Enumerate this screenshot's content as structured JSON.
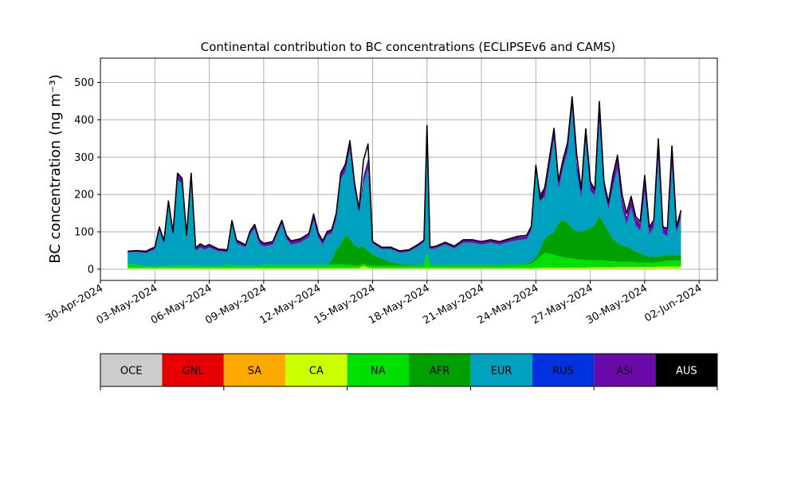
{
  "chart_data": {
    "type": "area",
    "stacked": true,
    "title": "Continental contribution to BC concentrations (ECLIPSEv6 and CAMS)",
    "ylabel": "BC concentration (ng m⁻³)",
    "xlabel": "",
    "x_range": [
      "2024-04-30",
      "2024-06-03"
    ],
    "x_ticks": [
      "30-Apr-2024",
      "03-May-2024",
      "06-May-2024",
      "09-May-2024",
      "12-May-2024",
      "15-May-2024",
      "18-May-2024",
      "21-May-2024",
      "24-May-2024",
      "27-May-2024",
      "30-May-2024",
      "02-Jun-2024"
    ],
    "x_tick_dates": [
      "2024-04-30",
      "2024-05-03",
      "2024-05-06",
      "2024-05-09",
      "2024-05-12",
      "2024-05-15",
      "2024-05-18",
      "2024-05-21",
      "2024-05-24",
      "2024-05-27",
      "2024-05-30",
      "2024-06-02"
    ],
    "ylim": [
      -30,
      565
    ],
    "y_ticks": [
      0,
      100,
      200,
      300,
      400,
      500
    ],
    "grid": true,
    "x": [
      "2024-05-01 12:00",
      "2024-05-02 00:00",
      "2024-05-02 12:00",
      "2024-05-02 18:00",
      "2024-05-03 00:00",
      "2024-05-03 06:00",
      "2024-05-03 12:00",
      "2024-05-03 18:00",
      "2024-05-04 00:00",
      "2024-05-04 06:00",
      "2024-05-04 12:00",
      "2024-05-04 18:00",
      "2024-05-05 00:00",
      "2024-05-05 06:00",
      "2024-05-05 12:00",
      "2024-05-05 18:00",
      "2024-05-06 00:00",
      "2024-05-06 12:00",
      "2024-05-07 00:00",
      "2024-05-07 06:00",
      "2024-05-07 12:00",
      "2024-05-08 00:00",
      "2024-05-08 06:00",
      "2024-05-08 12:00",
      "2024-05-08 18:00",
      "2024-05-09 00:00",
      "2024-05-09 12:00",
      "2024-05-10 00:00",
      "2024-05-10 06:00",
      "2024-05-10 12:00",
      "2024-05-11 00:00",
      "2024-05-11 12:00",
      "2024-05-11 18:00",
      "2024-05-12 00:00",
      "2024-05-12 06:00",
      "2024-05-12 12:00",
      "2024-05-12 18:00",
      "2024-05-13 00:00",
      "2024-05-13 06:00",
      "2024-05-13 12:00",
      "2024-05-13 18:00",
      "2024-05-14 00:00",
      "2024-05-14 06:00",
      "2024-05-14 12:00",
      "2024-05-14 18:00",
      "2024-05-15 00:00",
      "2024-05-15 12:00",
      "2024-05-16 00:00",
      "2024-05-16 12:00",
      "2024-05-17 00:00",
      "2024-05-17 12:00",
      "2024-05-17 20:00",
      "2024-05-18 00:00",
      "2024-05-18 04:00",
      "2024-05-18 12:00",
      "2024-05-19 00:00",
      "2024-05-19 12:00",
      "2024-05-20 00:00",
      "2024-05-20 12:00",
      "2024-05-21 00:00",
      "2024-05-21 12:00",
      "2024-05-22 00:00",
      "2024-05-22 12:00",
      "2024-05-23 00:00",
      "2024-05-23 12:00",
      "2024-05-23 18:00",
      "2024-05-24 00:00",
      "2024-05-24 06:00",
      "2024-05-24 12:00",
      "2024-05-25 00:00",
      "2024-05-25 06:00",
      "2024-05-25 12:00",
      "2024-05-25 18:00",
      "2024-05-26 00:00",
      "2024-05-26 06:00",
      "2024-05-26 12:00",
      "2024-05-26 18:00",
      "2024-05-27 00:00",
      "2024-05-27 06:00",
      "2024-05-27 12:00",
      "2024-05-27 18:00",
      "2024-05-28 00:00",
      "2024-05-28 06:00",
      "2024-05-28 12:00",
      "2024-05-28 18:00",
      "2024-05-29 00:00",
      "2024-05-29 06:00",
      "2024-05-29 12:00",
      "2024-05-29 18:00",
      "2024-05-30 00:00",
      "2024-05-30 06:00",
      "2024-05-30 12:00",
      "2024-05-30 18:00",
      "2024-05-31 00:00",
      "2024-05-31 06:00",
      "2024-05-31 12:00",
      "2024-05-31 18:00",
      "2024-06-01 00:00"
    ],
    "series": [
      {
        "name": "OCE",
        "color": "#cccccc",
        "values": [
          1,
          1,
          1,
          1,
          1,
          1,
          1,
          1,
          1,
          1,
          1,
          1,
          1,
          1,
          1,
          1,
          1,
          1,
          1,
          1,
          1,
          1,
          1,
          1,
          1,
          1,
          1,
          1,
          1,
          1,
          1,
          1,
          1,
          1,
          1,
          1,
          1,
          1,
          1,
          1,
          1,
          1,
          1,
          1,
          1,
          1,
          1,
          1,
          1,
          1,
          1,
          1,
          1,
          1,
          1,
          1,
          1,
          1,
          1,
          1,
          1,
          1,
          1,
          1,
          1,
          1,
          1,
          1,
          1,
          1,
          1,
          1,
          1,
          1,
          1,
          1,
          1,
          1,
          1,
          1,
          1,
          1,
          1,
          1,
          1,
          1,
          1,
          1,
          1,
          1,
          1,
          1,
          1,
          1,
          1,
          1,
          1,
          1
        ]
      },
      {
        "name": "GNL",
        "color": "#e60000",
        "values": [
          0,
          0,
          0,
          0,
          0,
          0,
          0,
          0,
          0,
          0,
          0,
          0,
          0,
          0,
          0,
          0,
          0,
          0,
          0,
          0,
          0,
          0,
          0,
          0,
          0,
          0,
          0,
          0,
          0,
          0,
          0,
          0,
          0,
          0,
          0,
          0,
          0,
          0,
          0,
          0,
          0,
          0,
          0,
          0,
          0,
          0,
          0,
          0,
          0,
          0,
          0,
          0,
          0,
          0,
          0,
          0,
          0,
          0,
          0,
          0,
          0,
          0,
          0,
          0,
          0,
          0,
          0,
          0,
          0,
          0,
          0,
          0,
          0,
          0,
          0,
          0,
          0,
          0,
          0,
          0,
          0,
          0,
          0,
          0,
          0,
          0,
          0,
          0,
          0,
          0,
          0,
          0,
          0,
          0,
          0,
          0,
          0,
          0
        ]
      },
      {
        "name": "SA",
        "color": "#ffaa00",
        "values": [
          0,
          0,
          0,
          0,
          0,
          0,
          0,
          0,
          0,
          0,
          0,
          0,
          0,
          0,
          0,
          0,
          0,
          0,
          0,
          0,
          0,
          0,
          0,
          0,
          0,
          0,
          0,
          0,
          0,
          0,
          0,
          0,
          0,
          0,
          0,
          0,
          0,
          0,
          0,
          0,
          0,
          0,
          0,
          0,
          0,
          0,
          0,
          0,
          0,
          0,
          0,
          0,
          0,
          0,
          0,
          0,
          0,
          0,
          0,
          0,
          0,
          0,
          0,
          0,
          0,
          0,
          0,
          0,
          0,
          0,
          0,
          0,
          0,
          0,
          0,
          0,
          0,
          0,
          0,
          0,
          0,
          0,
          0,
          0,
          0,
          0,
          0,
          0,
          0,
          0,
          0,
          0,
          0,
          0,
          0,
          0,
          0,
          0
        ]
      },
      {
        "name": "CA",
        "color": "#ccff00",
        "values": [
          2,
          2,
          2,
          2,
          2,
          2,
          2,
          2,
          2,
          2,
          2,
          2,
          2,
          2,
          2,
          2,
          2,
          2,
          2,
          2,
          2,
          2,
          2,
          2,
          2,
          2,
          2,
          2,
          2,
          2,
          2,
          2,
          2,
          2,
          2,
          2,
          2,
          2,
          2,
          2,
          2,
          2,
          2,
          8,
          3,
          2,
          2,
          2,
          2,
          2,
          2,
          2,
          2,
          2,
          2,
          2,
          2,
          2,
          2,
          2,
          2,
          2,
          2,
          2,
          2,
          2,
          2,
          3,
          3,
          3,
          3,
          3,
          3,
          3,
          3,
          3,
          3,
          4,
          4,
          4,
          4,
          4,
          4,
          5,
          5,
          5,
          5,
          5,
          5,
          5,
          5,
          5,
          6,
          6,
          6,
          6,
          6,
          6
        ]
      },
      {
        "name": "NA",
        "color": "#00e000",
        "values": [
          12,
          8,
          5,
          5,
          5,
          5,
          5,
          5,
          6,
          6,
          6,
          8,
          6,
          6,
          5,
          5,
          5,
          5,
          8,
          8,
          6,
          6,
          6,
          6,
          6,
          8,
          8,
          8,
          8,
          8,
          8,
          8,
          8,
          8,
          8,
          8,
          8,
          10,
          10,
          8,
          8,
          6,
          6,
          6,
          6,
          6,
          6,
          6,
          6,
          6,
          6,
          8,
          40,
          8,
          6,
          6,
          6,
          6,
          6,
          6,
          6,
          6,
          8,
          8,
          10,
          12,
          20,
          30,
          40,
          35,
          30,
          28,
          25,
          25,
          22,
          22,
          20,
          20,
          18,
          18,
          18,
          16,
          16,
          14,
          14,
          14,
          14,
          12,
          12,
          12,
          12,
          12,
          12,
          14,
          16,
          16,
          16,
          16
        ]
      },
      {
        "name": "AFR",
        "color": "#00a000",
        "values": [
          0,
          0,
          0,
          0,
          0,
          0,
          0,
          0,
          0,
          0,
          0,
          0,
          0,
          0,
          0,
          0,
          0,
          0,
          0,
          0,
          0,
          0,
          0,
          0,
          0,
          0,
          0,
          0,
          0,
          0,
          0,
          0,
          0,
          0,
          0,
          0,
          15,
          40,
          55,
          80,
          70,
          55,
          50,
          45,
          40,
          30,
          20,
          10,
          5,
          3,
          2,
          2,
          2,
          2,
          2,
          2,
          2,
          2,
          2,
          2,
          2,
          2,
          2,
          2,
          3,
          5,
          10,
          20,
          40,
          60,
          90,
          100,
          95,
          80,
          75,
          75,
          80,
          85,
          95,
          120,
          100,
          80,
          60,
          50,
          45,
          40,
          35,
          30,
          25,
          20,
          15,
          15,
          15,
          15,
          15,
          15,
          15,
          15
        ]
      },
      {
        "name": "EUR",
        "color": "#00a0bf",
        "values": [
          30,
          35,
          35,
          40,
          45,
          95,
          60,
          160,
          80,
          230,
          220,
          70,
          230,
          40,
          50,
          45,
          50,
          40,
          35,
          110,
          60,
          50,
          85,
          100,
          60,
          50,
          55,
          110,
          70,
          55,
          60,
          75,
          120,
          75,
          55,
          80,
          70,
          80,
          175,
          170,
          240,
          150,
          90,
          170,
          220,
          30,
          25,
          35,
          30,
          35,
          50,
          60,
          330,
          40,
          45,
          55,
          45,
          60,
          60,
          55,
          60,
          55,
          60,
          65,
          65,
          85,
          230,
          130,
          110,
          250,
          90,
          140,
          190,
          320,
          160,
          90,
          240,
          100,
          80,
          250,
          95,
          60,
          140,
          200,
          100,
          60,
          110,
          70,
          60,
          170,
          60,
          80,
          260,
          60,
          50,
          240,
          60,
          100
        ]
      },
      {
        "name": "RUS",
        "color": "#0033e0",
        "values": [
          0,
          0,
          0,
          0,
          0,
          0,
          0,
          0,
          0,
          0,
          0,
          0,
          0,
          0,
          0,
          0,
          0,
          0,
          0,
          0,
          0,
          0,
          0,
          0,
          0,
          0,
          0,
          0,
          0,
          0,
          0,
          0,
          0,
          0,
          0,
          0,
          0,
          0,
          0,
          0,
          0,
          0,
          0,
          0,
          0,
          0,
          0,
          0,
          0,
          0,
          0,
          0,
          0,
          0,
          0,
          0,
          0,
          0,
          0,
          0,
          0,
          0,
          0,
          0,
          0,
          0,
          0,
          0,
          0,
          0,
          0,
          0,
          0,
          0,
          0,
          0,
          0,
          0,
          0,
          0,
          0,
          0,
          0,
          0,
          0,
          0,
          0,
          0,
          0,
          0,
          0,
          0,
          0,
          0,
          0,
          0,
          0,
          0
        ]
      },
      {
        "name": "ASI",
        "color": "#6a0aab",
        "values": [
          3,
          4,
          5,
          6,
          6,
          10,
          8,
          15,
          10,
          18,
          15,
          10,
          18,
          8,
          10,
          8,
          8,
          6,
          6,
          8,
          8,
          6,
          8,
          10,
          10,
          8,
          8,
          10,
          10,
          10,
          10,
          10,
          15,
          12,
          10,
          10,
          10,
          12,
          15,
          20,
          25,
          20,
          12,
          20,
          25,
          5,
          5,
          5,
          5,
          5,
          5,
          5,
          10,
          6,
          6,
          6,
          6,
          8,
          8,
          8,
          8,
          8,
          8,
          8,
          8,
          10,
          18,
          20,
          25,
          25,
          20,
          20,
          25,
          35,
          25,
          20,
          30,
          25,
          20,
          35,
          25,
          20,
          25,
          30,
          25,
          20,
          25,
          20,
          20,
          30,
          20,
          20,
          35,
          20,
          20,
          35,
          20,
          20
        ]
      },
      {
        "name": "AUS",
        "color": "#000000",
        "values": [
          0,
          0,
          0,
          0,
          0,
          0,
          0,
          0,
          0,
          0,
          0,
          0,
          0,
          0,
          0,
          0,
          0,
          0,
          0,
          0,
          0,
          0,
          0,
          0,
          0,
          0,
          0,
          0,
          0,
          0,
          0,
          0,
          0,
          0,
          0,
          0,
          0,
          0,
          0,
          0,
          0,
          0,
          0,
          0,
          0,
          0,
          0,
          0,
          0,
          0,
          0,
          0,
          0,
          0,
          0,
          0,
          0,
          0,
          0,
          0,
          0,
          0,
          0,
          0,
          0,
          0,
          0,
          0,
          0,
          0,
          0,
          0,
          0,
          0,
          0,
          0,
          0,
          0,
          0,
          0,
          0,
          0,
          0,
          0,
          0,
          0,
          0,
          0,
          0,
          0,
          0,
          0,
          0,
          0,
          0,
          0,
          0,
          0
        ]
      }
    ],
    "total_line": {
      "color": "#000000",
      "values": [
        48,
        50,
        48,
        54,
        59,
        113,
        76,
        183,
        99,
        257,
        244,
        91,
        257,
        57,
        68,
        61,
        66,
        54,
        52,
        130,
        78,
        65,
        102,
        120,
        80,
        69,
        74,
        131,
        91,
        76,
        81,
        96,
        148,
        98,
        76,
        101,
        106,
        150,
        258,
        281,
        344,
        234,
        161,
        292,
        335,
        74,
        59,
        59,
        49,
        52,
        66,
        78,
        385,
        59,
        62,
        72,
        62,
        79,
        79,
        74,
        79,
        74,
        81,
        88,
        91,
        115,
        278,
        186,
        221,
        377,
        237,
        294,
        339,
        462,
        307,
        214,
        376,
        235,
        213,
        449,
        235,
        179,
        252,
        305,
        200,
        149,
        195,
        142,
        127,
        251,
        113,
        131,
        349,
        113,
        109,
        330,
        114,
        158
      ]
    }
  },
  "legend": {
    "items": [
      {
        "label": "OCE",
        "color": "#cccccc",
        "text_color": "#000000"
      },
      {
        "label": "GNL",
        "color": "#e60000",
        "text_color": "#000000"
      },
      {
        "label": "SA",
        "color": "#ffaa00",
        "text_color": "#000000"
      },
      {
        "label": "CA",
        "color": "#ccff00",
        "text_color": "#000000"
      },
      {
        "label": "NA",
        "color": "#00e000",
        "text_color": "#000000"
      },
      {
        "label": "AFR",
        "color": "#00a000",
        "text_color": "#000000"
      },
      {
        "label": "EUR",
        "color": "#00a0bf",
        "text_color": "#000000"
      },
      {
        "label": "RUS",
        "color": "#0033e0",
        "text_color": "#000000"
      },
      {
        "label": "ASI",
        "color": "#6a0aab",
        "text_color": "#000000"
      },
      {
        "label": "AUS",
        "color": "#000000",
        "text_color": "#ffffff"
      }
    ]
  }
}
